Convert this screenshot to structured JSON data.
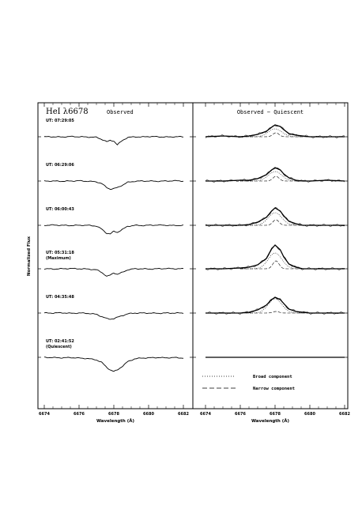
{
  "chart_data": [
    {
      "type": "line",
      "panel": "left",
      "title": "HeI λ6678",
      "subtitle": "Observed",
      "xlabel": "Wavelength (Å)",
      "ylabel": "Normalized Flux",
      "xlim": [
        6674,
        6682
      ],
      "x_ticks": [
        "6674",
        "6676",
        "6678",
        "6680",
        "6682"
      ],
      "grid": false,
      "series": [
        {
          "name": "UT: 07:29:05",
          "x": [
            6674.0,
            6674.5,
            6675.0,
            6675.5,
            6676.0,
            6676.5,
            6677.0,
            6677.3,
            6677.6,
            6677.8,
            6678.0,
            6678.2,
            6678.5,
            6678.8,
            6679.2,
            6679.6,
            6680.0,
            6680.5,
            6681.0,
            6681.5,
            6682.0
          ],
          "y": [
            1.0,
            1.0,
            0.99,
            1.01,
            1.0,
            0.99,
            0.98,
            0.9,
            0.8,
            0.86,
            0.83,
            0.68,
            0.86,
            0.97,
            1.0,
            0.99,
            1.01,
            1.0,
            0.99,
            1.0,
            1.0
          ]
        },
        {
          "name": "UT: 06:29:06",
          "x": [
            6674.0,
            6674.5,
            6675.0,
            6675.5,
            6676.0,
            6676.5,
            6677.0,
            6677.3,
            6677.6,
            6677.8,
            6678.0,
            6678.2,
            6678.5,
            6678.8,
            6679.2,
            6679.6,
            6680.0,
            6680.5,
            6681.0,
            6681.5,
            6682.0
          ],
          "y": [
            1.0,
            1.0,
            0.99,
            1.0,
            1.01,
            0.99,
            0.97,
            0.9,
            0.74,
            0.68,
            0.7,
            0.74,
            0.84,
            0.95,
            0.99,
            1.0,
            1.0,
            0.99,
            1.0,
            1.01,
            1.0
          ]
        },
        {
          "name": "UT: 06:00:43",
          "x": [
            6674.0,
            6674.5,
            6675.0,
            6675.5,
            6676.0,
            6676.5,
            6677.0,
            6677.3,
            6677.6,
            6677.8,
            6678.0,
            6678.2,
            6678.5,
            6678.8,
            6679.2,
            6679.6,
            6680.0,
            6680.5,
            6681.0,
            6681.5,
            6682.0
          ],
          "y": [
            1.0,
            1.01,
            1.0,
            0.99,
            1.0,
            1.0,
            0.97,
            0.85,
            0.68,
            0.66,
            0.76,
            0.72,
            0.84,
            0.96,
            1.0,
            0.99,
            1.0,
            1.01,
            1.0,
            0.99,
            1.0
          ]
        },
        {
          "name": "UT: 05:31:18 (Maximum)",
          "x": [
            6674.0,
            6674.5,
            6675.0,
            6675.5,
            6676.0,
            6676.5,
            6677.0,
            6677.3,
            6677.6,
            6677.8,
            6678.0,
            6678.2,
            6678.5,
            6678.8,
            6679.2,
            6679.6,
            6680.0,
            6680.5,
            6681.0,
            6681.5,
            6682.0
          ],
          "y": [
            1.0,
            0.99,
            1.0,
            1.01,
            1.0,
            0.99,
            0.96,
            0.86,
            0.7,
            0.75,
            0.84,
            0.78,
            0.86,
            0.96,
            1.0,
            1.0,
            0.99,
            1.0,
            1.01,
            1.0,
            1.0
          ]
        },
        {
          "name": "UT: 04:35:48",
          "x": [
            6674.0,
            6674.5,
            6675.0,
            6675.5,
            6676.0,
            6676.5,
            6677.0,
            6677.3,
            6677.6,
            6677.8,
            6678.0,
            6678.2,
            6678.5,
            6678.8,
            6679.2,
            6679.6,
            6680.0,
            6680.5,
            6681.0,
            6681.5,
            6682.0
          ],
          "y": [
            1.0,
            1.0,
            1.01,
            0.99,
            1.0,
            0.99,
            0.95,
            0.86,
            0.78,
            0.76,
            0.78,
            0.83,
            0.9,
            0.97,
            1.0,
            1.0,
            1.0,
            0.99,
            1.0,
            1.0,
            1.0
          ]
        },
        {
          "name": "UT: 02:41:52 (Quiescent)",
          "x": [
            6674.0,
            6674.5,
            6675.0,
            6675.5,
            6676.0,
            6676.5,
            6677.0,
            6677.3,
            6677.6,
            6677.8,
            6678.0,
            6678.2,
            6678.5,
            6678.8,
            6679.2,
            6679.6,
            6680.0,
            6680.5,
            6681.0,
            6681.5,
            6682.0
          ],
          "y": [
            1.0,
            0.99,
            0.98,
            0.99,
            0.97,
            0.95,
            0.9,
            0.8,
            0.6,
            0.5,
            0.44,
            0.5,
            0.65,
            0.83,
            0.94,
            0.97,
            0.98,
            0.99,
            0.98,
            0.99,
            0.97
          ]
        }
      ]
    },
    {
      "type": "line",
      "panel": "right",
      "title": "Observed − Quiescent",
      "xlabel": "Wavelength (Å)",
      "xlim": [
        6674,
        6682
      ],
      "x_ticks": [
        "6674",
        "6676",
        "6678",
        "6680",
        "6682"
      ],
      "grid": false,
      "legend": {
        "placement": "bottom-left",
        "entries": [
          "Broad component",
          "Narrow component"
        ]
      },
      "series": [
        {
          "name": "UT: 07:29:05",
          "x": [
            6674.0,
            6675.0,
            6676.0,
            6676.5,
            6677.0,
            6677.5,
            6677.8,
            6678.0,
            6678.3,
            6678.5,
            6678.8,
            6679.2,
            6679.6,
            6680.0,
            6681.0,
            6682.0
          ],
          "y": [
            0.0,
            0.01,
            0.0,
            0.01,
            0.03,
            0.07,
            0.12,
            0.15,
            0.13,
            0.09,
            0.04,
            0.02,
            0.01,
            0.0,
            0.0,
            0.0
          ],
          "broad_peak": 0.1,
          "narrow_peak": 0.05
        },
        {
          "name": "UT: 06:29:06",
          "x": [
            6674.0,
            6675.0,
            6676.0,
            6676.5,
            6677.0,
            6677.5,
            6677.8,
            6678.0,
            6678.3,
            6678.5,
            6678.8,
            6679.2,
            6679.6,
            6680.0,
            6681.0,
            6682.0
          ],
          "y": [
            0.0,
            0.0,
            0.01,
            0.01,
            0.03,
            0.08,
            0.14,
            0.17,
            0.14,
            0.09,
            0.04,
            0.01,
            0.0,
            0.0,
            0.01,
            0.0
          ],
          "broad_peak": 0.12,
          "narrow_peak": 0.06
        },
        {
          "name": "UT: 06:00:43",
          "x": [
            6674.0,
            6675.0,
            6676.0,
            6676.5,
            6677.0,
            6677.5,
            6677.8,
            6678.0,
            6678.3,
            6678.5,
            6678.8,
            6679.2,
            6679.6,
            6680.0,
            6681.0,
            6682.0
          ],
          "y": [
            0.0,
            0.0,
            0.0,
            0.01,
            0.04,
            0.1,
            0.18,
            0.22,
            0.18,
            0.12,
            0.05,
            0.02,
            0.0,
            0.0,
            0.0,
            0.0
          ],
          "broad_peak": 0.16,
          "narrow_peak": 0.07
        },
        {
          "name": "UT: 05:31:18 (Maximum)",
          "x": [
            6674.0,
            6675.0,
            6676.0,
            6676.5,
            6677.0,
            6677.5,
            6677.8,
            6678.0,
            6678.3,
            6678.5,
            6678.8,
            6679.2,
            6679.6,
            6680.0,
            6681.0,
            6682.0
          ],
          "y": [
            0.0,
            0.0,
            0.01,
            0.02,
            0.05,
            0.13,
            0.25,
            0.3,
            0.24,
            0.15,
            0.06,
            0.02,
            0.0,
            0.0,
            0.0,
            0.0
          ],
          "broad_peak": 0.2,
          "narrow_peak": 0.1
        },
        {
          "name": "UT: 04:35:48",
          "x": [
            6674.0,
            6675.0,
            6676.0,
            6676.5,
            6677.0,
            6677.5,
            6677.8,
            6678.0,
            6678.3,
            6678.5,
            6678.8,
            6679.2,
            6679.6,
            6680.0,
            6681.0,
            6682.0
          ],
          "y": [
            0.0,
            0.0,
            0.0,
            0.01,
            0.04,
            0.1,
            0.17,
            0.2,
            0.17,
            0.12,
            0.05,
            0.02,
            0.01,
            0.0,
            0.0,
            0.0
          ],
          "broad_peak": 0.18,
          "narrow_peak": 0.02
        },
        {
          "name": "UT: 02:41:52 (Quiescent)",
          "x": [
            6674.0,
            6682.0
          ],
          "y": [
            0.0,
            0.0
          ],
          "broad_peak": 0,
          "narrow_peak": 0
        }
      ]
    }
  ]
}
